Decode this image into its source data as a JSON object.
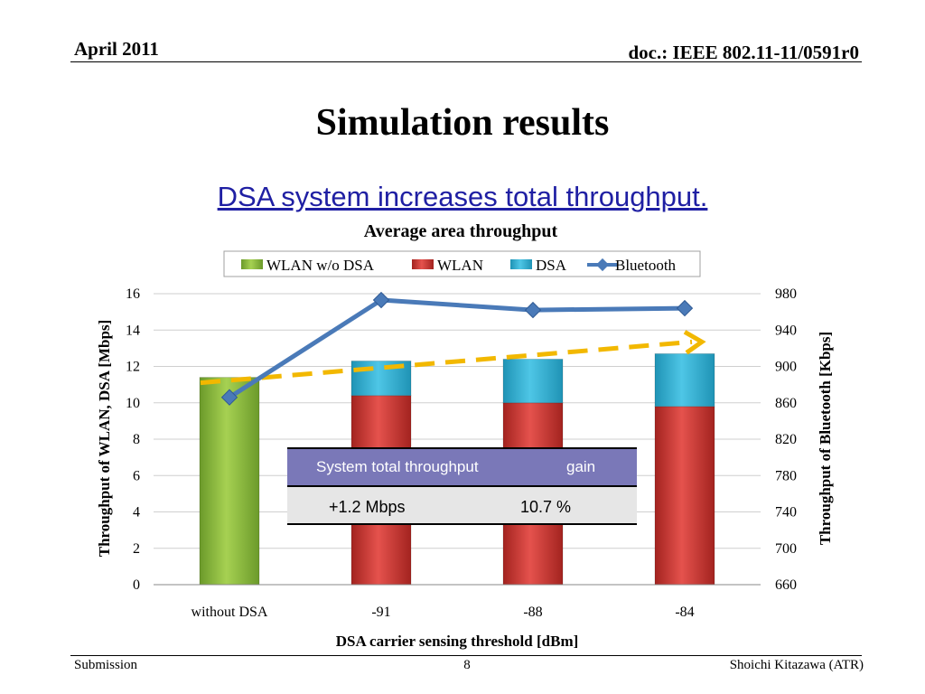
{
  "header": {
    "date": "April 2011",
    "doc": "doc.: IEEE 802.11-11/0591r0"
  },
  "slide": {
    "title": "Simulation results",
    "subtitle": "DSA system increases total throughput."
  },
  "footer": {
    "left": "Submission",
    "page": "8",
    "right": "Shoichi Kitazawa (ATR)"
  },
  "chart_data": {
    "type": "bar",
    "title": "Average area throughput",
    "categories": [
      "without DSA",
      "-91",
      "-88",
      "-84"
    ],
    "xlabel": "DSA carrier sensing threshold [dBm]",
    "ylabel": "Throughput of WLAN, DSA [Mbps]",
    "y2label": "Throughput of Bluetooth [Kbps]",
    "ylim": [
      0,
      16
    ],
    "yticks": [
      0,
      2,
      4,
      6,
      8,
      10,
      12,
      14,
      16
    ],
    "y2lim": [
      660,
      980
    ],
    "y2ticks": [
      660,
      700,
      740,
      780,
      820,
      860,
      900,
      940,
      980
    ],
    "grid": true,
    "legend": "top",
    "series": [
      {
        "name": "WLAN w/o DSA",
        "kind": "bar",
        "color": "#8bbf3a",
        "values": [
          11.4,
          null,
          null,
          null
        ]
      },
      {
        "name": "WLAN",
        "kind": "stacked-bar",
        "color": "#d6413d",
        "values": [
          null,
          10.4,
          10.0,
          9.8
        ]
      },
      {
        "name": "DSA",
        "kind": "stacked-bar",
        "color": "#35b3d6",
        "values": [
          null,
          1.9,
          2.4,
          2.9
        ]
      },
      {
        "name": "Bluetooth",
        "kind": "line",
        "axis": "right",
        "color": "#4a7ab8",
        "values": [
          866,
          973,
          962,
          964
        ]
      }
    ],
    "trend_arrow_color": "#f2b800"
  },
  "gain_table": {
    "headers": [
      "System total throughput",
      "gain"
    ],
    "values": [
      "+1.2 Mbps",
      "10.7 %"
    ],
    "header_color": "#7a78b8"
  }
}
